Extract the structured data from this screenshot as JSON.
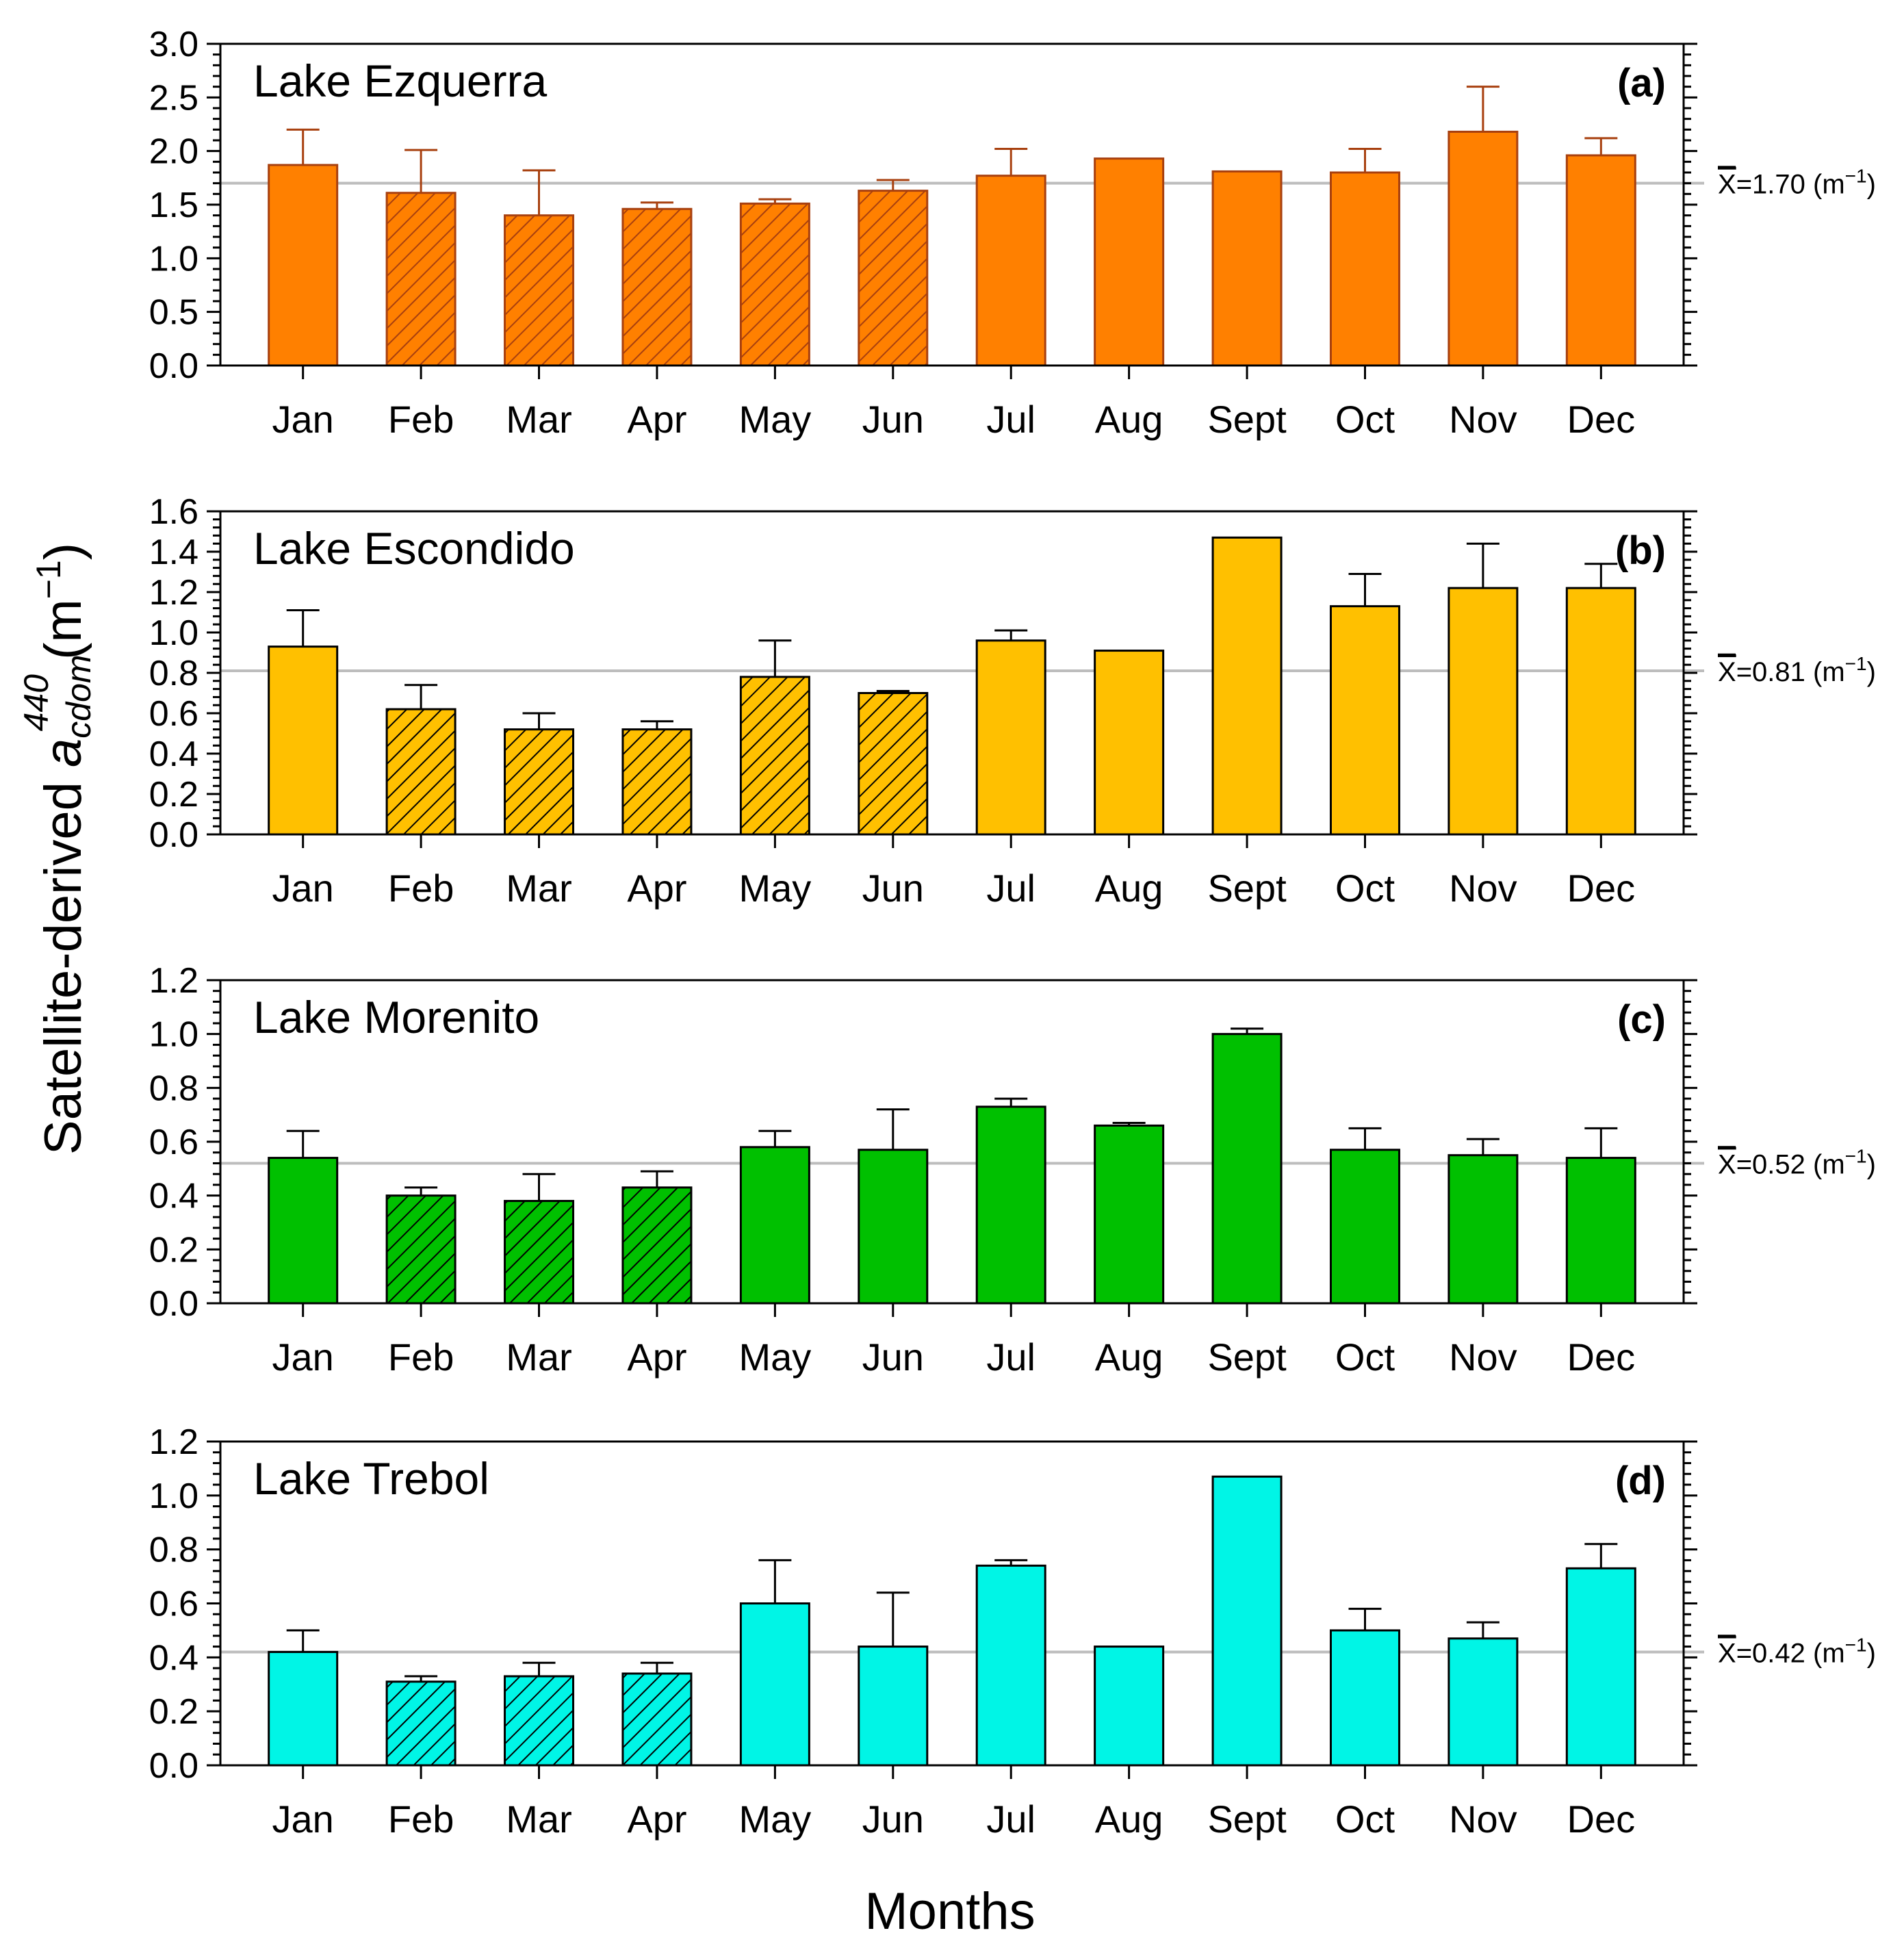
{
  "figure": {
    "ylabel_main": "Satellite-derived ",
    "ylabel_var": "a",
    "ylabel_sub": "cdom",
    "ylabel_sup": "440",
    "ylabel_units": " (m",
    "ylabel_units_exp": "−1",
    "ylabel_close": ")",
    "xlabel": "Months"
  },
  "chart_data": [
    {
      "type": "bar",
      "panel": "(a)",
      "title": "Lake Ezquerra",
      "color": "#FF8000",
      "edge": "#A8400F",
      "categories": [
        "Jan",
        "Feb",
        "Mar",
        "Apr",
        "May",
        "Jun",
        "Jul",
        "Aug",
        "Sept",
        "Oct",
        "Nov",
        "Dec"
      ],
      "values": [
        1.87,
        1.61,
        1.4,
        1.46,
        1.51,
        1.63,
        1.77,
        1.93,
        1.81,
        1.8,
        2.18,
        1.96
      ],
      "errors": [
        0.33,
        0.4,
        0.42,
        0.06,
        0.04,
        0.1,
        0.25,
        0.0,
        0.0,
        0.22,
        0.42,
        0.16
      ],
      "hatched": [
        false,
        true,
        true,
        true,
        true,
        true,
        false,
        false,
        false,
        false,
        false,
        false
      ],
      "ylim": [
        0,
        3.0
      ],
      "yticks": [
        0.0,
        0.5,
        1.0,
        1.5,
        2.0,
        2.5,
        3.0
      ],
      "ytick_labels": [
        "0.0",
        "0.5",
        "1.0",
        "1.5",
        "2.0",
        "2.5",
        "3.0"
      ],
      "mean": 1.7,
      "mean_label": "=1.70 (m",
      "mean_symbol": "X",
      "mean_exp": "−1",
      "mean_close": ")"
    },
    {
      "type": "bar",
      "panel": "(b)",
      "title": "Lake Escondido",
      "color": "#FFC000",
      "edge": "#000000",
      "categories": [
        "Jan",
        "Feb",
        "Mar",
        "Apr",
        "May",
        "Jun",
        "Jul",
        "Aug",
        "Sept",
        "Oct",
        "Nov",
        "Dec"
      ],
      "values": [
        0.93,
        0.62,
        0.52,
        0.52,
        0.78,
        0.7,
        0.96,
        0.91,
        1.47,
        1.13,
        1.22,
        1.22
      ],
      "errors": [
        0.18,
        0.12,
        0.08,
        0.04,
        0.18,
        0.01,
        0.05,
        0.0,
        0.0,
        0.16,
        0.22,
        0.12
      ],
      "hatched": [
        false,
        true,
        true,
        true,
        true,
        true,
        false,
        false,
        false,
        false,
        false,
        false
      ],
      "ylim": [
        0,
        1.6
      ],
      "yticks": [
        0.0,
        0.2,
        0.4,
        0.6,
        0.8,
        1.0,
        1.2,
        1.4,
        1.6
      ],
      "ytick_labels": [
        "0.0",
        "0.2",
        "0.4",
        "0.6",
        "0.8",
        "1.0",
        "1.2",
        "1.4",
        "1.6"
      ],
      "mean": 0.81,
      "mean_label": "=0.81 (m",
      "mean_symbol": "X",
      "mean_exp": "−1",
      "mean_close": ")"
    },
    {
      "type": "bar",
      "panel": "(c)",
      "title": "Lake Morenito",
      "color": "#00C000",
      "edge": "#000000",
      "categories": [
        "Jan",
        "Feb",
        "Mar",
        "Apr",
        "May",
        "Jun",
        "Jul",
        "Aug",
        "Sept",
        "Oct",
        "Nov",
        "Dec"
      ],
      "values": [
        0.54,
        0.4,
        0.38,
        0.43,
        0.58,
        0.57,
        0.73,
        0.66,
        1.0,
        0.57,
        0.55,
        0.54
      ],
      "errors": [
        0.1,
        0.03,
        0.1,
        0.06,
        0.06,
        0.15,
        0.03,
        0.01,
        0.02,
        0.08,
        0.06,
        0.11
      ],
      "hatched": [
        false,
        true,
        true,
        true,
        false,
        false,
        false,
        false,
        false,
        false,
        false,
        false
      ],
      "ylim": [
        0,
        1.2
      ],
      "yticks": [
        0.0,
        0.2,
        0.4,
        0.6,
        0.8,
        1.0,
        1.2
      ],
      "ytick_labels": [
        "0.0",
        "0.2",
        "0.4",
        "0.6",
        "0.8",
        "1.0",
        "1.2"
      ],
      "mean": 0.52,
      "mean_label": "=0.52 (m",
      "mean_symbol": "X",
      "mean_exp": "−1",
      "mean_close": ")"
    },
    {
      "type": "bar",
      "panel": "(d)",
      "title": "Lake Trebol",
      "color": "#00F5E6",
      "edge": "#000000",
      "categories": [
        "Jan",
        "Feb",
        "Mar",
        "Apr",
        "May",
        "Jun",
        "Jul",
        "Aug",
        "Sept",
        "Oct",
        "Nov",
        "Dec"
      ],
      "values": [
        0.42,
        0.31,
        0.33,
        0.34,
        0.6,
        0.44,
        0.74,
        0.44,
        1.07,
        0.5,
        0.47,
        0.73
      ],
      "errors": [
        0.08,
        0.02,
        0.05,
        0.04,
        0.16,
        0.2,
        0.02,
        0.0,
        0.0,
        0.08,
        0.06,
        0.09
      ],
      "hatched": [
        false,
        true,
        true,
        true,
        false,
        false,
        false,
        false,
        false,
        false,
        false,
        false
      ],
      "ylim": [
        0,
        1.2
      ],
      "yticks": [
        0.0,
        0.2,
        0.4,
        0.6,
        0.8,
        1.0,
        1.2
      ],
      "ytick_labels": [
        "0.0",
        "0.2",
        "0.4",
        "0.6",
        "0.8",
        "1.0",
        "1.2"
      ],
      "mean": 0.42,
      "mean_label": "=0.42 (m",
      "mean_symbol": "X",
      "mean_exp": "−1",
      "mean_close": ")"
    }
  ]
}
